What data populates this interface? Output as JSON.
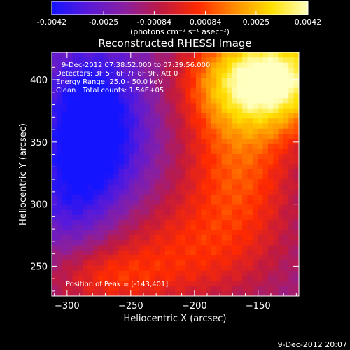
{
  "colorbar": {
    "tick_labels": [
      "-0.0042",
      "-0.0025",
      "-0.00084",
      "0.00084",
      "0.0025",
      "0.0042"
    ],
    "tick_values": [
      -0.0042,
      -0.0025,
      -0.00084,
      0.00084,
      0.0025,
      0.0042
    ],
    "range": [
      -0.0042,
      0.0042
    ],
    "unit_label": "(photons cm⁻² s⁻¹ asec⁻²)",
    "colors": [
      "#1414ff",
      "#5a1ad8",
      "#8a1fa0",
      "#c01a40",
      "#ff2a00",
      "#ff8c00",
      "#ffe000",
      "#ffffc0"
    ]
  },
  "chart_data": {
    "type": "heatmap",
    "title": "Reconstructed RHESSI Image",
    "xlabel": "Heliocentric X (arcsec)",
    "ylabel": "Heliocentric Y (arcsec)",
    "xlim": [
      -312,
      -118
    ],
    "ylim": [
      226,
      422
    ],
    "x_ticks": [
      -300,
      -250,
      -200,
      -150
    ],
    "x_tick_labels": [
      "−300",
      "−250",
      "−200",
      "−150"
    ],
    "y_ticks": [
      250,
      300,
      350,
      400
    ],
    "y_tick_labels": [
      "250",
      "300",
      "350",
      "400"
    ],
    "peak": [
      -143,
      401
    ],
    "annotations": {
      "time_range": "9-Dec-2012 07:38:52.000 to 07:39:56.000",
      "detectors": "Detectors: 3F 5F 6F 7F 8F 9F, Att 0",
      "energy": "Energy Range: 25.0 - 50.0 keV",
      "clean_label": "Clean",
      "total_counts": "Total counts: 1.54E+05",
      "peak_position": "Position of Peak = [-143,401]"
    }
  },
  "footer": {
    "timestamp": "9-Dec-2012 20:07"
  }
}
